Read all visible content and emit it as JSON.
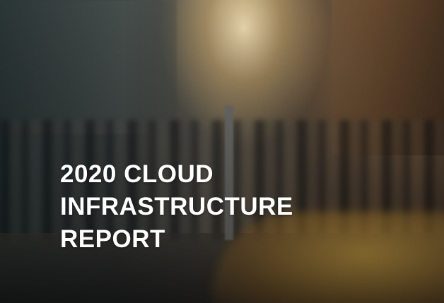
{
  "cover": {
    "title_lines": [
      "2020 CLOUD",
      "INFRASTRUCTURE",
      "REPORT"
    ]
  }
}
